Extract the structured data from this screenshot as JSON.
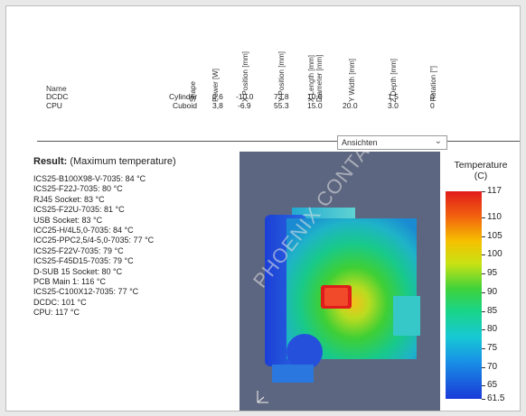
{
  "table": {
    "name_header": "Name",
    "columns": [
      {
        "label": "Shape"
      },
      {
        "label": "Power [W]"
      },
      {
        "label": "X Position [mm]"
      },
      {
        "label": "Y Position [mm]"
      },
      {
        "label": "X Length [mm] Diameter [mm]"
      },
      {
        "label": "Y Width [mm]"
      },
      {
        "label": "Z Depth [mm]"
      },
      {
        "label": "Rotation [°]"
      }
    ],
    "rows": [
      {
        "name": "DCDC",
        "shape": "Cylinder",
        "power": "0,6",
        "x_pos": "-10.0",
        "y_pos": "73.8",
        "x_len": "10.0",
        "y_width": "",
        "z_depth": "1.5",
        "rotation": "0"
      },
      {
        "name": "CPU",
        "shape": "Cuboid",
        "power": "3,8",
        "x_pos": "-6.9",
        "y_pos": "55.3",
        "x_len": "15.0",
        "y_width": "20.0",
        "z_depth": "3.0",
        "rotation": "0"
      }
    ]
  },
  "dropdown": {
    "value": "Ansichten",
    "chevron_icon": "chevron-down-icon"
  },
  "result": {
    "title_bold": "Result:",
    "title_rest": " (Maximum temperature)",
    "items": [
      "ICS25-B100X98-V-7035: 84 °C",
      "ICS25-F22J-7035: 80 °C",
      "RJ45 Socket: 83 °C",
      "ICS25-F22U-7035: 81 °C",
      "USB Socket: 83 °C",
      "ICC25-H/4L5,0-7035: 84 °C",
      "ICC25-PPC2,5/4-5,0-7035: 77 °C",
      "ICS25-F22V-7035: 79 °C",
      "ICS25-F45D15-7035: 79 °C",
      "D-SUB 15 Socket: 80 °C",
      "PCB Main 1: 116 °C",
      "ICS25-C100X12-7035: 77 °C",
      "DCDC: 101 °C",
      "CPU: 117 °C"
    ]
  },
  "viewport": {
    "watermark": "PHOENIX CONTACT"
  },
  "legend": {
    "title_line1": "Temperature",
    "title_line2": "(C)",
    "ticks": [
      "117",
      "110",
      "105",
      "100",
      "95",
      "90",
      "85",
      "80",
      "75",
      "70",
      "65",
      "61.5"
    ],
    "tick_values": [
      117,
      110,
      105,
      100,
      95,
      90,
      85,
      80,
      75,
      70,
      65,
      61.5
    ],
    "min": 61.5,
    "max": 117
  }
}
